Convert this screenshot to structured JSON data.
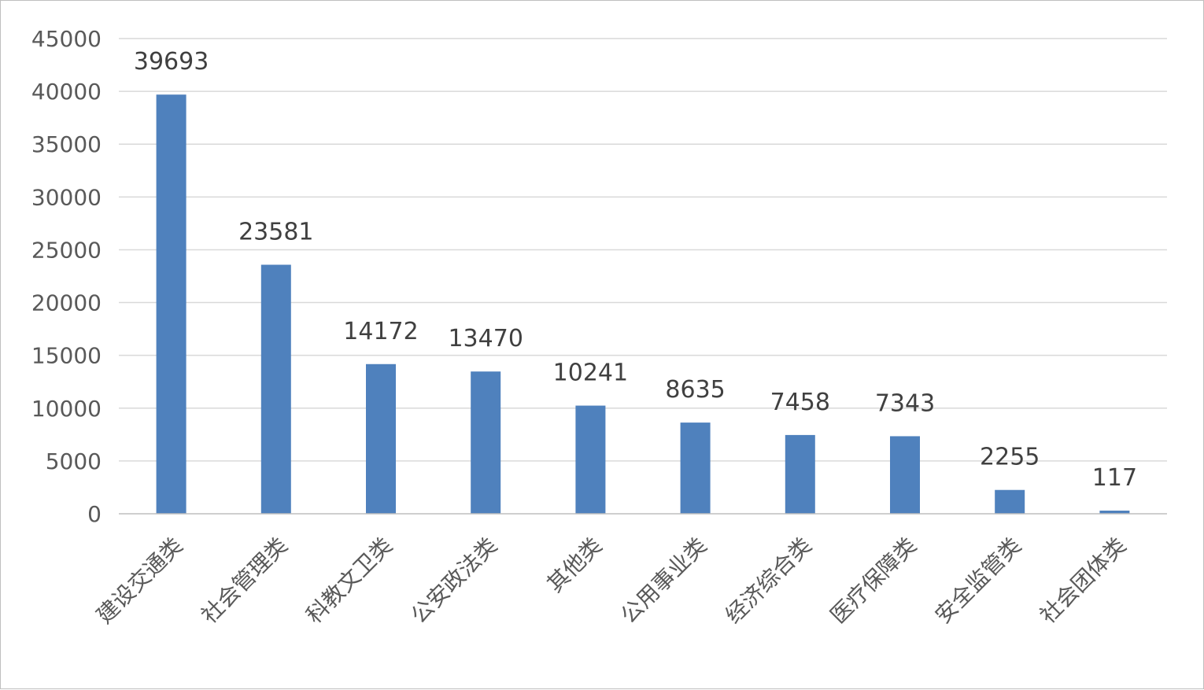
{
  "chart_data": {
    "type": "bar",
    "categories": [
      "建设交通类",
      "社会管理类",
      "科教文卫类",
      "公安政法类",
      "其他类",
      "公用事业类",
      "经济综合类",
      "医疗保障类",
      "安全监管类",
      "社会团体类"
    ],
    "values": [
      39693,
      23581,
      14172,
      13470,
      10241,
      8635,
      7458,
      7343,
      2255,
      117
    ],
    "data_labels": [
      "39693",
      "23581",
      "14172",
      "13470",
      "10241",
      "8635",
      "7458",
      "7343",
      "2255",
      "117"
    ],
    "y_ticks": [
      "0",
      "5000",
      "10000",
      "15000",
      "20000",
      "25000",
      "30000",
      "35000",
      "40000",
      "45000"
    ],
    "ylim": [
      0,
      45000
    ],
    "title": "",
    "xlabel": "",
    "ylabel": "",
    "grid": true,
    "legend": "none",
    "colors": {
      "bar": "#4f81bd"
    }
  }
}
